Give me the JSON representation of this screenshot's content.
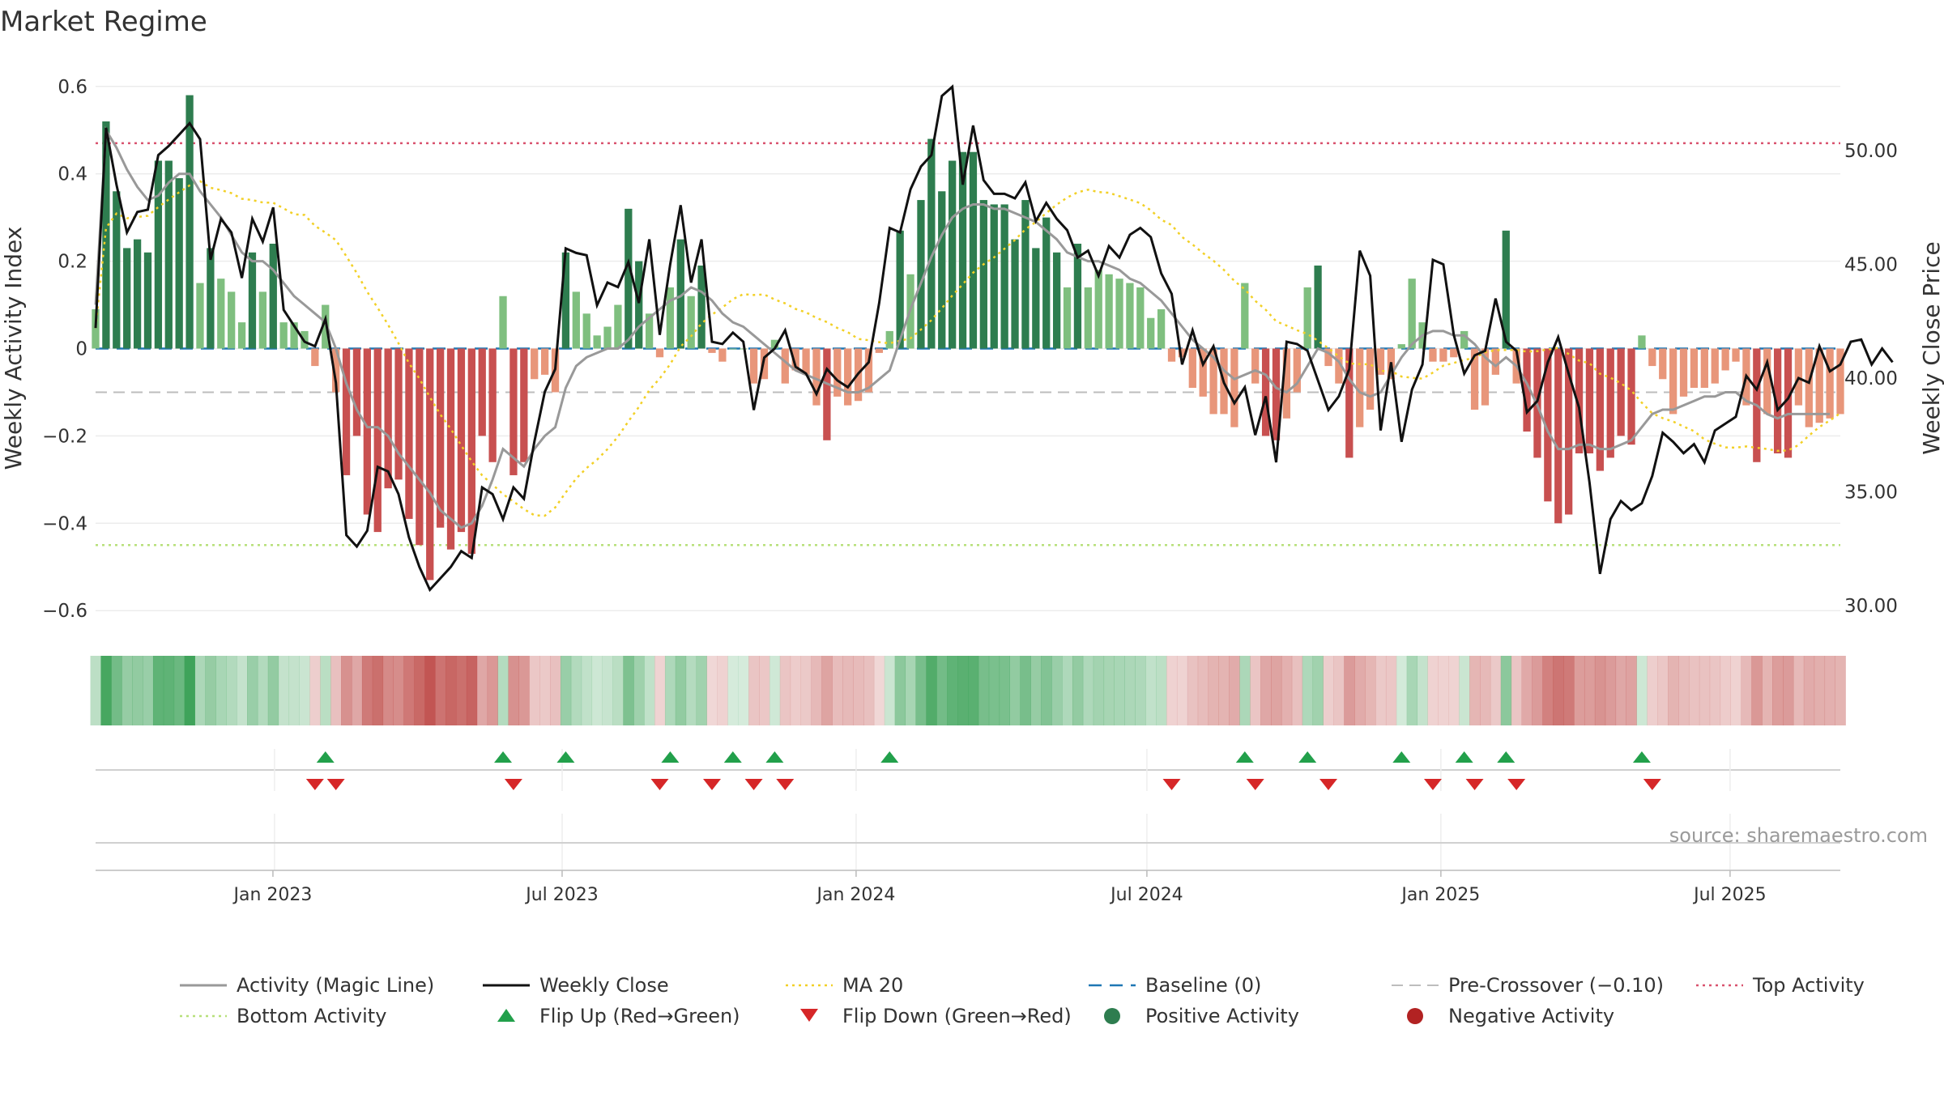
{
  "chart_data": {
    "title": "Market Regime",
    "type": "bar+line",
    "y_left": {
      "label": "Weekly Activity Index",
      "range": [
        -0.62,
        0.62
      ],
      "ticks": [
        "0.6",
        "0.4",
        "0.2",
        "0",
        "−0.2",
        "−0.4",
        "−0.6"
      ]
    },
    "y_right": {
      "label": "Weekly Close Price",
      "range": [
        29.4,
        53.2
      ],
      "ticks": [
        "50.00",
        "45.00",
        "40.00",
        "35.00",
        "30.00"
      ]
    },
    "x_ticks": [
      "Jan 2023",
      "Jul 2023",
      "Jan 2024",
      "Jul 2024",
      "Jan 2025",
      "Jul 2025"
    ],
    "x_range": [
      "2022-09-12",
      "2025-09-08"
    ],
    "reference_lines": {
      "top_activity": 0.47,
      "bottom_activity": -0.45,
      "baseline": 0.0,
      "pre_crossover": -0.1
    },
    "activity": [
      0.09,
      0.52,
      0.36,
      0.23,
      0.25,
      0.22,
      0.43,
      0.43,
      0.39,
      0.58,
      0.15,
      0.23,
      0.16,
      0.13,
      0.06,
      0.22,
      0.13,
      0.24,
      0.06,
      0.06,
      0.04,
      -0.04,
      0.1,
      -0.1,
      -0.29,
      -0.2,
      -0.38,
      -0.42,
      -0.32,
      -0.3,
      -0.39,
      -0.45,
      -0.53,
      -0.41,
      -0.46,
      -0.42,
      -0.47,
      -0.2,
      -0.26,
      0.12,
      -0.29,
      -0.26,
      -0.07,
      -0.06,
      -0.1,
      0.22,
      0.13,
      0.08,
      0.03,
      0.05,
      0.1,
      0.32,
      0.2,
      0.08,
      -0.02,
      0.14,
      0.25,
      0.12,
      0.19,
      -0.01,
      -0.03,
      0.0,
      0.0,
      -0.08,
      -0.07,
      0.02,
      -0.08,
      -0.05,
      -0.06,
      -0.13,
      -0.21,
      -0.11,
      -0.13,
      -0.12,
      -0.1,
      -0.01,
      0.04,
      0.27,
      0.17,
      0.34,
      0.48,
      0.36,
      0.43,
      0.45,
      0.45,
      0.34,
      0.33,
      0.33,
      0.25,
      0.34,
      0.23,
      0.3,
      0.22,
      0.14,
      0.24,
      0.14,
      0.18,
      0.17,
      0.16,
      0.15,
      0.14,
      0.07,
      0.09,
      -0.03,
      -0.02,
      -0.09,
      -0.11,
      -0.15,
      -0.15,
      -0.18,
      0.15,
      -0.08,
      -0.2,
      -0.21,
      -0.16,
      -0.1,
      0.14,
      0.19,
      -0.04,
      -0.08,
      -0.25,
      -0.18,
      -0.14,
      -0.06,
      -0.07,
      0.01,
      0.16,
      0.06,
      -0.03,
      -0.03,
      -0.02,
      0.04,
      -0.14,
      -0.13,
      -0.06,
      0.27,
      -0.08,
      -0.19,
      -0.25,
      -0.35,
      -0.4,
      -0.38,
      -0.24,
      -0.24,
      -0.28,
      -0.25,
      -0.2,
      -0.22,
      0.03,
      -0.04,
      -0.07,
      -0.15,
      -0.11,
      -0.09,
      -0.09,
      -0.08,
      -0.05,
      -0.03,
      -0.13,
      -0.26,
      -0.15,
      -0.24,
      -0.25,
      -0.13,
      -0.18,
      -0.17,
      -0.16,
      -0.15
    ],
    "magic_line": [
      0.1,
      0.5,
      0.46,
      0.41,
      0.37,
      0.34,
      0.35,
      0.38,
      0.4,
      0.4,
      0.36,
      0.33,
      0.3,
      0.26,
      0.22,
      0.2,
      0.2,
      0.18,
      0.15,
      0.12,
      0.1,
      0.08,
      0.06,
      0.0,
      -0.08,
      -0.14,
      -0.18,
      -0.18,
      -0.2,
      -0.24,
      -0.27,
      -0.3,
      -0.33,
      -0.37,
      -0.39,
      -0.41,
      -0.4,
      -0.36,
      -0.3,
      -0.23,
      -0.25,
      -0.27,
      -0.23,
      -0.2,
      -0.18,
      -0.09,
      -0.04,
      -0.02,
      -0.01,
      0.0,
      0.0,
      0.02,
      0.05,
      0.07,
      0.09,
      0.11,
      0.12,
      0.14,
      0.13,
      0.11,
      0.08,
      0.06,
      0.05,
      0.03,
      0.01,
      -0.01,
      -0.03,
      -0.05,
      -0.06,
      -0.07,
      -0.08,
      -0.09,
      -0.1,
      -0.1,
      -0.09,
      -0.07,
      -0.05,
      0.02,
      0.09,
      0.15,
      0.21,
      0.26,
      0.3,
      0.32,
      0.33,
      0.33,
      0.32,
      0.32,
      0.31,
      0.3,
      0.29,
      0.27,
      0.25,
      0.22,
      0.21,
      0.2,
      0.2,
      0.19,
      0.18,
      0.16,
      0.15,
      0.13,
      0.11,
      0.08,
      0.05,
      0.02,
      0.0,
      -0.02,
      -0.05,
      -0.07,
      -0.06,
      -0.05,
      -0.06,
      -0.09,
      -0.1,
      -0.08,
      -0.04,
      0.0,
      -0.01,
      -0.03,
      -0.07,
      -0.1,
      -0.11,
      -0.1,
      -0.06,
      -0.02,
      0.01,
      0.03,
      0.04,
      0.04,
      0.03,
      0.03,
      0.01,
      -0.02,
      -0.04,
      -0.02,
      -0.04,
      -0.08,
      -0.13,
      -0.19,
      -0.23,
      -0.23,
      -0.22,
      -0.22,
      -0.23,
      -0.23,
      -0.22,
      -0.21,
      -0.18,
      -0.15,
      -0.14,
      -0.14,
      -0.13,
      -0.12,
      -0.11,
      -0.11,
      -0.1,
      -0.1,
      -0.12,
      -0.13,
      -0.15,
      -0.16,
      -0.15,
      -0.15,
      -0.15,
      -0.15,
      -0.15
    ],
    "weekly_close": [
      42.2,
      51.0,
      48.5,
      46.4,
      47.3,
      47.4,
      49.8,
      50.2,
      50.7,
      51.2,
      50.5,
      45.2,
      47.0,
      46.4,
      44.4,
      47.0,
      46.0,
      47.5,
      43.0,
      42.3,
      41.6,
      41.4,
      42.6,
      39.8,
      33.1,
      32.6,
      33.3,
      36.1,
      35.9,
      34.9,
      33.0,
      31.7,
      30.7,
      31.2,
      31.7,
      32.4,
      32.1,
      35.2,
      34.9,
      33.8,
      35.2,
      34.7,
      37.2,
      39.4,
      40.4,
      45.7,
      45.5,
      45.4,
      43.2,
      44.2,
      44.0,
      45.1,
      43.3,
      46.1,
      41.9,
      45.0,
      47.6,
      44.2,
      46.1,
      41.6,
      41.5,
      42.0,
      41.6,
      38.6,
      40.9,
      41.3,
      42.1,
      40.5,
      40.2,
      39.3,
      40.4,
      39.9,
      39.6,
      40.2,
      40.7,
      43.3,
      46.6,
      46.4,
      48.3,
      49.3,
      49.8,
      52.4,
      52.8,
      48.5,
      51.1,
      48.7,
      48.1,
      48.1,
      47.9,
      48.6,
      46.9,
      47.7,
      47.0,
      46.5,
      45.3,
      45.6,
      44.5,
      45.8,
      45.3,
      46.3,
      46.6,
      46.2,
      44.6,
      43.7,
      40.6,
      42.1,
      40.6,
      41.4,
      39.8,
      38.9,
      39.6,
      37.5,
      39.2,
      36.3,
      41.6,
      41.5,
      41.2,
      39.9,
      38.6,
      39.2,
      40.4,
      45.6,
      44.5,
      37.7,
      40.7,
      37.2,
      39.5,
      40.6,
      45.2,
      45.0,
      41.9,
      40.2,
      41.0,
      41.2,
      43.5,
      41.6,
      41.2,
      38.5,
      39.0,
      40.7,
      41.8,
      40.2,
      38.7,
      35.4,
      31.4,
      33.8,
      34.6,
      34.2,
      34.5,
      35.7,
      37.6,
      37.2,
      36.7,
      37.1,
      36.3,
      37.7,
      38.0,
      38.3,
      40.1,
      39.5,
      40.7,
      38.6,
      39.1,
      40.0,
      39.8,
      41.4,
      40.3,
      40.6,
      41.6,
      41.7,
      40.6,
      41.3,
      40.7
    ]
  },
  "legend": [
    {
      "label": "Activity (Magic Line)",
      "kind": "line-gray"
    },
    {
      "label": "Weekly Close",
      "kind": "line-black"
    },
    {
      "label": "MA 20",
      "kind": "line-yellow-dotted"
    },
    {
      "label": "Baseline (0)",
      "kind": "line-blue-dashed"
    },
    {
      "label": "Pre-Crossover (−0.10)",
      "kind": "line-gray-dashed"
    },
    {
      "label": "Top Activity",
      "kind": "line-red-dotted"
    },
    {
      "label": "Bottom Activity",
      "kind": "line-green-dotted"
    },
    {
      "label": "Flip Up (Red→Green)",
      "kind": "triangle-up"
    },
    {
      "label": "Flip Down (Green→Red)",
      "kind": "triangle-down"
    },
    {
      "label": "Positive Activity",
      "kind": "dot-green"
    },
    {
      "label": "Negative Activity",
      "kind": "dot-red"
    }
  ],
  "source_note": "source: sharemaestro.com",
  "colors": {
    "strong_positive": "#2e7d4f",
    "weak_positive": "#7fbf7f",
    "strong_negative": "#c85050",
    "weak_negative": "#e8967a",
    "magic_line": "#999999",
    "close": "#111111",
    "ma20": "#f2d027",
    "top_line": "#d9536f",
    "bottom_line": "#b7e07a",
    "baseline": "#1f77b4",
    "flip_up": "#22a04b",
    "flip_down": "#d62728"
  }
}
